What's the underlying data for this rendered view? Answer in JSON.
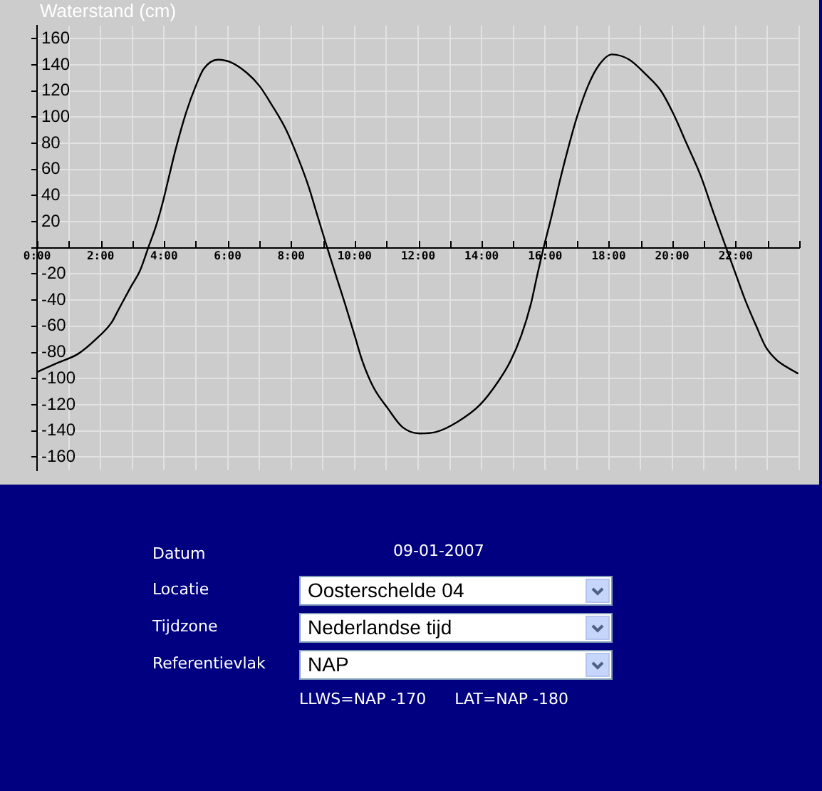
{
  "chart_data": {
    "type": "line",
    "ylabel": "Waterstand (cm)",
    "x": [
      0,
      0.65,
      1.3,
      1.85,
      2.35,
      2.55,
      2.95,
      3.25,
      3.5,
      3.75,
      3.95,
      4.15,
      4.35,
      4.7,
      5,
      5.25,
      5.7,
      6.1,
      6.6,
      7,
      7.4,
      7.85,
      8.2,
      8.55,
      8.8,
      9.1,
      9.45,
      9.7,
      10,
      10.25,
      10.6,
      11.05,
      11.5,
      12.05,
      12.55,
      13.25,
      13.95,
      14.5,
      14.9,
      15.25,
      15.55,
      15.75,
      15.95,
      16.2,
      16.45,
      16.7,
      17,
      17.35,
      17.7,
      18.1,
      18.65,
      19.2,
      19.65,
      20.05,
      20.45,
      20.9,
      21.3,
      21.7,
      22,
      22.3,
      22.65,
      22.95,
      23.3,
      23.95
    ],
    "values": [
      -95,
      -88,
      -81,
      -70,
      -57,
      -48,
      -30,
      -17,
      0,
      17,
      34,
      54,
      74,
      104,
      124,
      137,
      144,
      142,
      134,
      124,
      109,
      90,
      70,
      47,
      27,
      3,
      -24,
      -43,
      -67,
      -87,
      -107,
      -123,
      -137,
      -142,
      -141,
      -133,
      -120,
      -103,
      -87,
      -67,
      -43,
      -21,
      0,
      24,
      50,
      74,
      100,
      124,
      140,
      148,
      144,
      132,
      120,
      102,
      80,
      55,
      27,
      0,
      -20,
      -40,
      -60,
      -76,
      -86,
      -96
    ],
    "color": "#000000",
    "xlim": [
      0,
      24
    ],
    "xticks": [
      {
        "value": 0,
        "label": "0:00"
      },
      {
        "value": 1,
        "label": null
      },
      {
        "value": 2,
        "label": "2:00"
      },
      {
        "value": 3,
        "label": null
      },
      {
        "value": 4,
        "label": "4:00"
      },
      {
        "value": 5,
        "label": null
      },
      {
        "value": 6,
        "label": "6:00"
      },
      {
        "value": 7,
        "label": null
      },
      {
        "value": 8,
        "label": "8:00"
      },
      {
        "value": 9,
        "label": null
      },
      {
        "value": 10,
        "label": "10:00"
      },
      {
        "value": 11,
        "label": null
      },
      {
        "value": 12,
        "label": "12:00"
      },
      {
        "value": 13,
        "label": null
      },
      {
        "value": 14,
        "label": "14:00"
      },
      {
        "value": 15,
        "label": null
      },
      {
        "value": 16,
        "label": "16:00"
      },
      {
        "value": 17,
        "label": null
      },
      {
        "value": 18,
        "label": "18:00"
      },
      {
        "value": 19,
        "label": null
      },
      {
        "value": 20,
        "label": "20:00"
      },
      {
        "value": 21,
        "label": null
      },
      {
        "value": 22,
        "label": "22:00"
      },
      {
        "value": 23,
        "label": null
      },
      {
        "value": 24,
        "label": null
      }
    ],
    "ylim": [
      -170,
      170
    ],
    "yticks": [
      -160,
      -140,
      -120,
      -100,
      -80,
      -60,
      -40,
      -20,
      {
        "value": 0,
        "label": null
      },
      20,
      40,
      60,
      80,
      100,
      120,
      140,
      160
    ],
    "grid": true,
    "annotations": [
      "Datum",
      "09-01-2007",
      "Locatie",
      "Oosterschelde 04",
      "Tijdzone",
      "Nederlandse tijd",
      "Referentievlak",
      "NAP",
      "LLWS=NAP -170",
      "LAT=NAP -180"
    ]
  }
}
